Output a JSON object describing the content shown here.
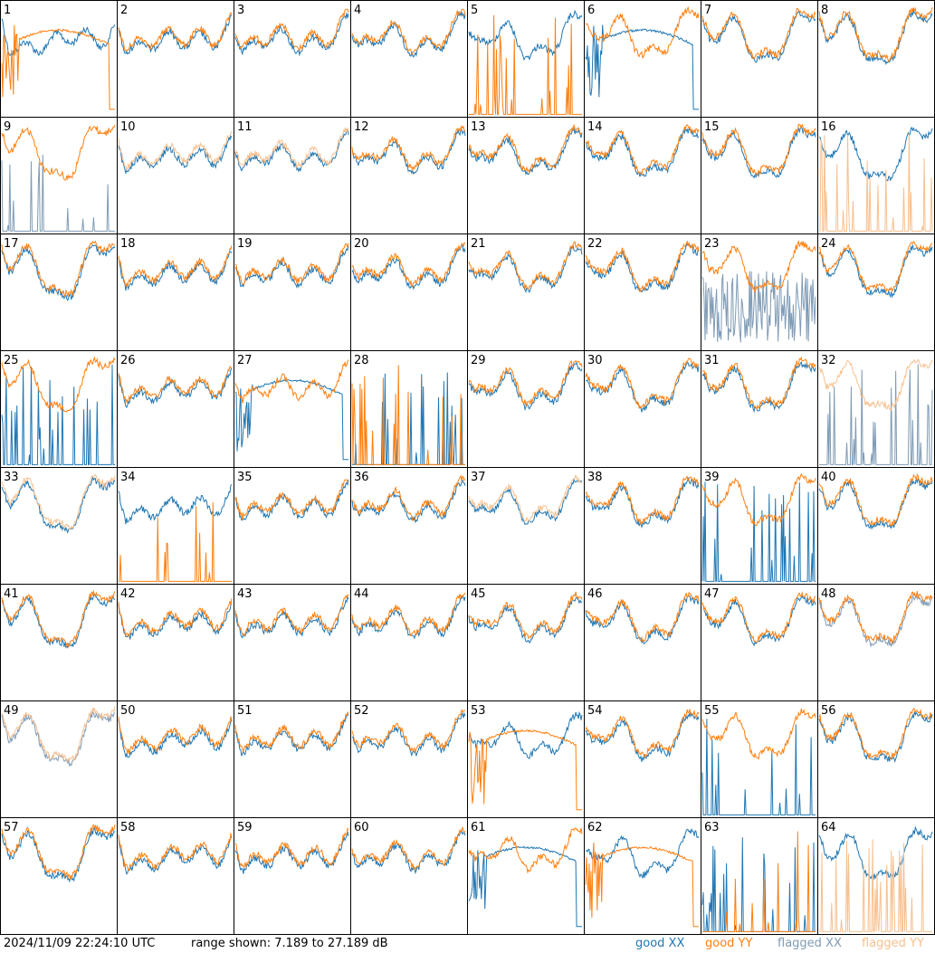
{
  "chart_data": {
    "type": "line",
    "title": "",
    "layout": "8x8 panel grid",
    "panels": [
      "1",
      "2",
      "3",
      "4",
      "5",
      "6",
      "7",
      "8",
      "9",
      "10",
      "11",
      "12",
      "13",
      "14",
      "15",
      "16",
      "17",
      "18",
      "19",
      "20",
      "21",
      "22",
      "23",
      "24",
      "25",
      "26",
      "27",
      "28",
      "29",
      "30",
      "31",
      "32",
      "33",
      "34",
      "35",
      "36",
      "37",
      "38",
      "39",
      "40",
      "41",
      "42",
      "43",
      "44",
      "45",
      "46",
      "47",
      "48",
      "49",
      "50",
      "51",
      "52",
      "53",
      "54",
      "55",
      "56",
      "57",
      "58",
      "59",
      "60",
      "61",
      "62",
      "63",
      "64"
    ],
    "range_db": [
      7.189,
      27.189
    ],
    "series": [
      {
        "name": "good XX",
        "color": "#1f77b4"
      },
      {
        "name": "good YY",
        "color": "#ff7f0e"
      },
      {
        "name": "flagged XX",
        "color": "#7f9bb5"
      },
      {
        "name": "flagged YY",
        "color": "#f7c08f"
      }
    ],
    "panel_styles": {
      "1": {
        "xx": "normal",
        "yy": "hump"
      },
      "5": {
        "xx": "normal",
        "yy": "spikes"
      },
      "6": {
        "xx": "hump",
        "yy": "normal"
      },
      "9": {
        "xx": "spikes",
        "yy": "normal",
        "xx_flagged": true
      },
      "10": {
        "xx": "normal",
        "yy": "normal",
        "yy_flagged": true
      },
      "11": {
        "xx": "normal",
        "yy": "normal",
        "yy_flagged": true
      },
      "16": {
        "xx": "normal",
        "yy": "spikes",
        "yy_flagged": true
      },
      "23": {
        "xx": "noisy",
        "yy": "normal",
        "xx_flagged": true
      },
      "25": {
        "xx": "spikes",
        "yy": "normal"
      },
      "27": {
        "xx": "hump",
        "yy": "normal"
      },
      "28": {
        "xx": "spikes",
        "yy": "spikes"
      },
      "32": {
        "xx": "spikes",
        "yy": "normal",
        "xx_flagged": true,
        "yy_flagged": true
      },
      "33": {
        "xx": "normal",
        "yy": "normal",
        "yy_flagged": true
      },
      "34": {
        "xx": "normal",
        "yy": "spikes"
      },
      "37": {
        "xx": "normal",
        "yy": "normal",
        "yy_flagged": true
      },
      "39": {
        "xx": "spikes",
        "yy": "normal"
      },
      "48": {
        "xx": "normal",
        "yy": "normal",
        "xx_flagged": true
      },
      "49": {
        "xx": "normal",
        "yy": "normal",
        "xx_flagged": true,
        "yy_flagged": true
      },
      "53": {
        "xx": "normal",
        "yy": "hump"
      },
      "55": {
        "xx": "spikes",
        "yy": "normal"
      },
      "61": {
        "xx": "hump",
        "yy": "normal"
      },
      "62": {
        "xx": "normal",
        "yy": "hump"
      },
      "63": {
        "xx": "spikes",
        "yy": "spikes"
      },
      "64": {
        "xx": "normal",
        "yy": "spikes",
        "yy_flagged": true
      }
    }
  },
  "footer": {
    "timestamp": "2024/11/09 22:24:10 UTC",
    "range_text": "range shown: 7.189 to 27.189 dB",
    "legend": [
      {
        "label": "good XX",
        "color": "#1f77b4"
      },
      {
        "label": "good YY",
        "color": "#ff7f0e"
      },
      {
        "label": "flagged XX",
        "color": "#7f9bb5"
      },
      {
        "label": "flagged YY",
        "color": "#f7c08f"
      }
    ]
  }
}
